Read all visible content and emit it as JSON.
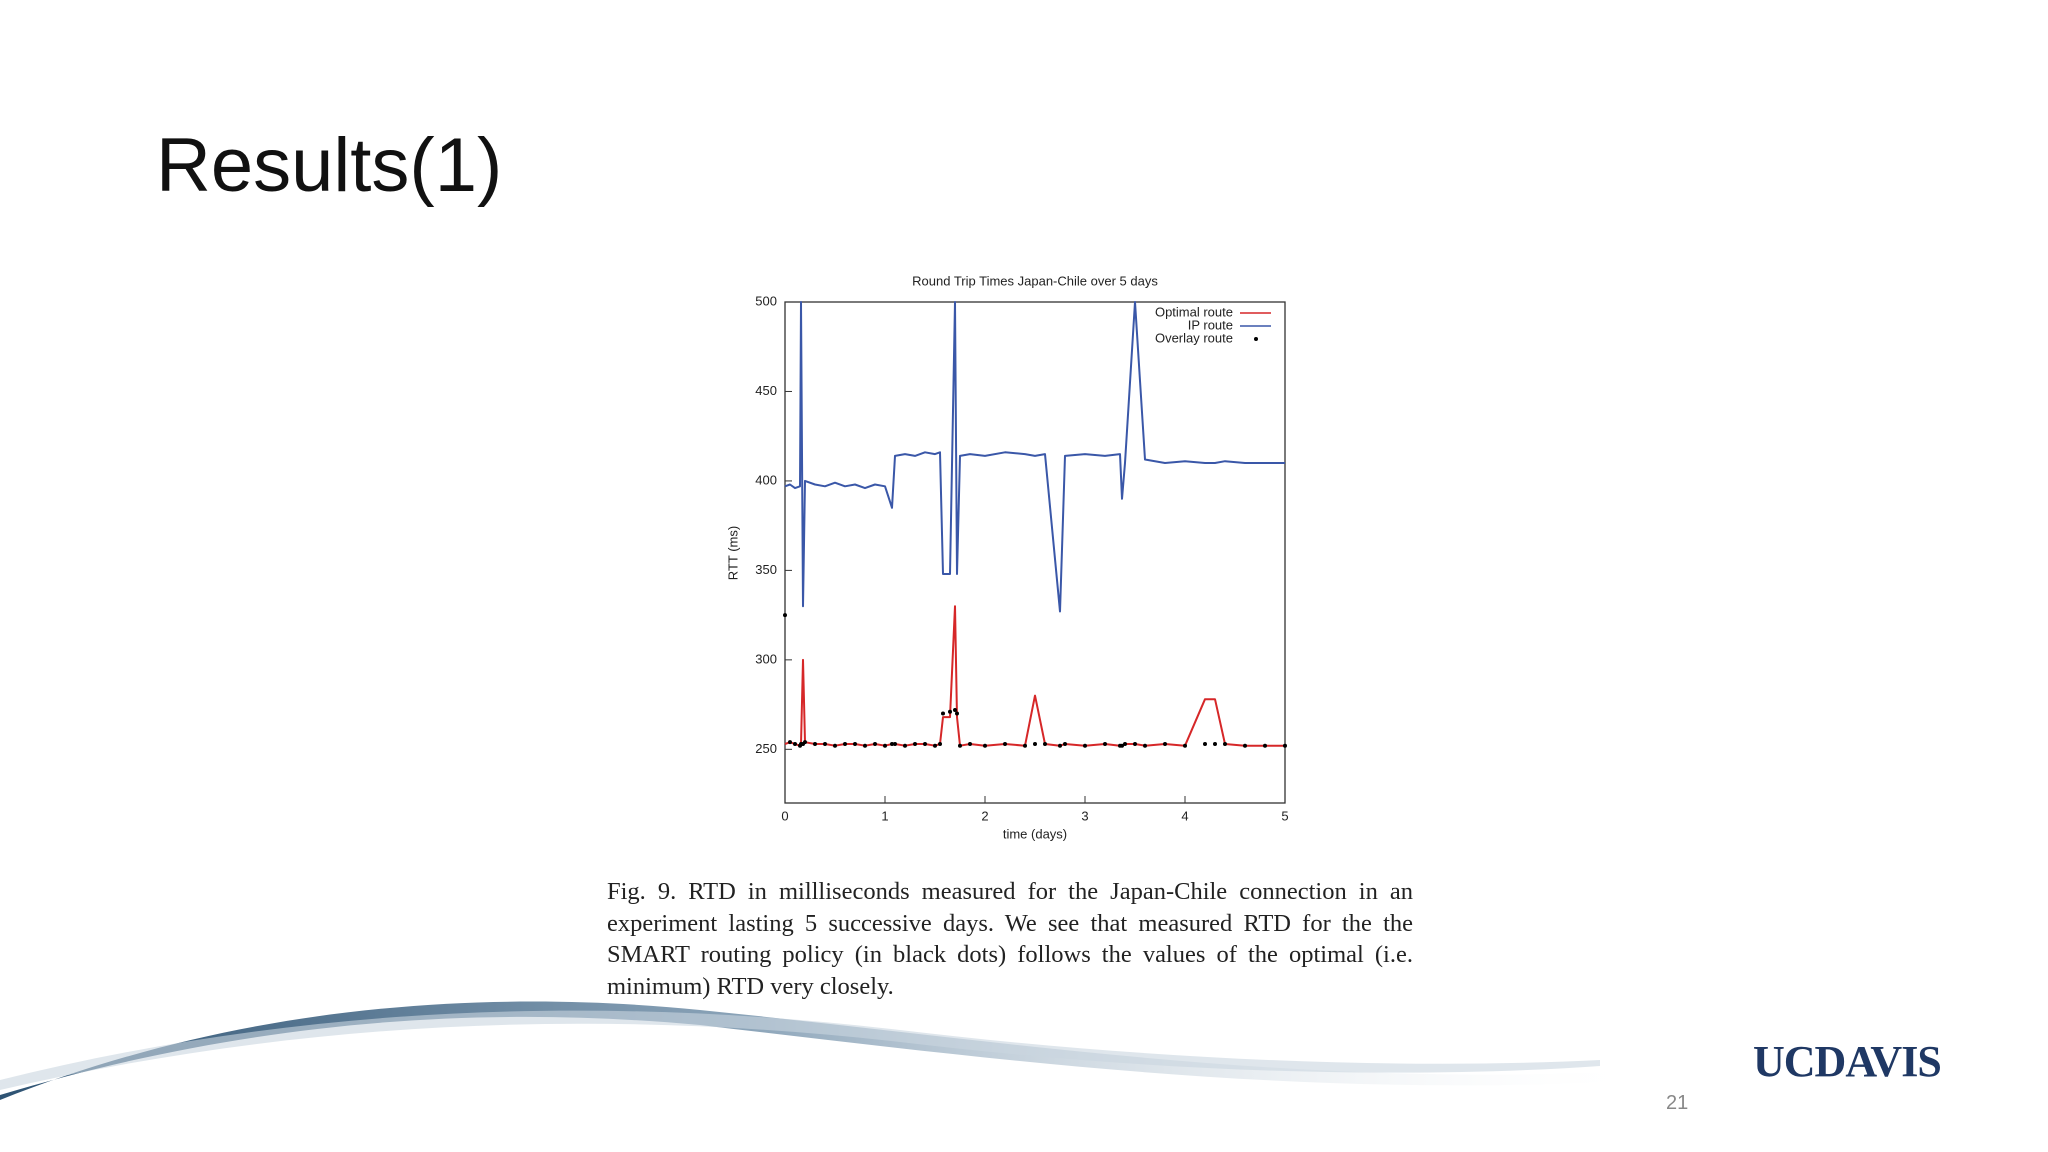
{
  "slide": {
    "title": "Results(1)",
    "caption": "Fig. 9.  RTD in millliseconds measured for the Japan-Chile connection in an experiment lasting 5 successive days. We see that measured RTD for the the SMART routing policy (in black dots) follows the values of the optimal (i.e. minimum) RTD very closely.",
    "logo": "UCDAVIS",
    "page_number": "21"
  },
  "chart_data": {
    "type": "line",
    "title": "Round Trip Times Japan-Chile over 5 days",
    "x_label": "time (days)",
    "y_label": "RTT (ms)",
    "x": [
      0,
      0.05,
      0.1,
      0.15,
      0.16,
      0.18,
      0.2,
      0.3,
      0.4,
      0.5,
      0.6,
      0.7,
      0.8,
      0.9,
      1.0,
      1.07,
      1.1,
      1.2,
      1.3,
      1.4,
      1.5,
      1.55,
      1.58,
      1.65,
      1.7,
      1.72,
      1.75,
      1.85,
      2.0,
      2.2,
      2.4,
      2.5,
      2.6,
      2.75,
      2.8,
      3.0,
      3.2,
      3.35,
      3.37,
      3.4,
      3.5,
      3.6,
      3.8,
      4.0,
      4.2,
      4.3,
      4.4,
      4.6,
      4.8,
      5.0
    ],
    "series": [
      {
        "name": "Optimal route",
        "color": "#d62728",
        "marker": "line",
        "values": [
          253,
          254,
          253,
          252,
          253,
          300,
          254,
          253,
          253,
          252,
          253,
          253,
          252,
          253,
          252,
          253,
          253,
          252,
          253,
          253,
          252,
          253,
          268,
          268,
          330,
          268,
          252,
          253,
          252,
          253,
          252,
          280,
          253,
          252,
          253,
          252,
          253,
          252,
          252,
          253,
          253,
          252,
          253,
          252,
          278,
          278,
          253,
          252,
          252,
          252
        ]
      },
      {
        "name": "IP route",
        "color": "#3a57a8",
        "marker": "line",
        "values": [
          397,
          398,
          396,
          397,
          500,
          330,
          400,
          398,
          397,
          399,
          397,
          398,
          396,
          398,
          397,
          385,
          414,
          415,
          414,
          416,
          415,
          416,
          348,
          348,
          500,
          348,
          414,
          415,
          414,
          416,
          415,
          414,
          415,
          327,
          414,
          415,
          414,
          415,
          390,
          410,
          500,
          412,
          410,
          411,
          410,
          410,
          411,
          410,
          410,
          410
        ]
      },
      {
        "name": "Overlay route",
        "color": "#000000",
        "marker": "dot",
        "values": [
          325,
          254,
          253,
          252,
          253,
          253,
          254,
          253,
          253,
          252,
          253,
          253,
          252,
          253,
          252,
          253,
          253,
          252,
          253,
          253,
          252,
          253,
          270,
          271,
          272,
          270,
          252,
          253,
          252,
          253,
          252,
          253,
          253,
          252,
          253,
          252,
          253,
          252,
          252,
          253,
          253,
          252,
          253,
          252,
          253,
          253,
          253,
          252,
          252,
          252
        ]
      }
    ],
    "xlim": [
      0,
      5
    ],
    "xticks": [
      0,
      1,
      2,
      3,
      4,
      5
    ],
    "ylim": [
      220,
      500
    ],
    "yticks": [
      250,
      300,
      350,
      400,
      450,
      500
    ],
    "legend": "top-right"
  }
}
